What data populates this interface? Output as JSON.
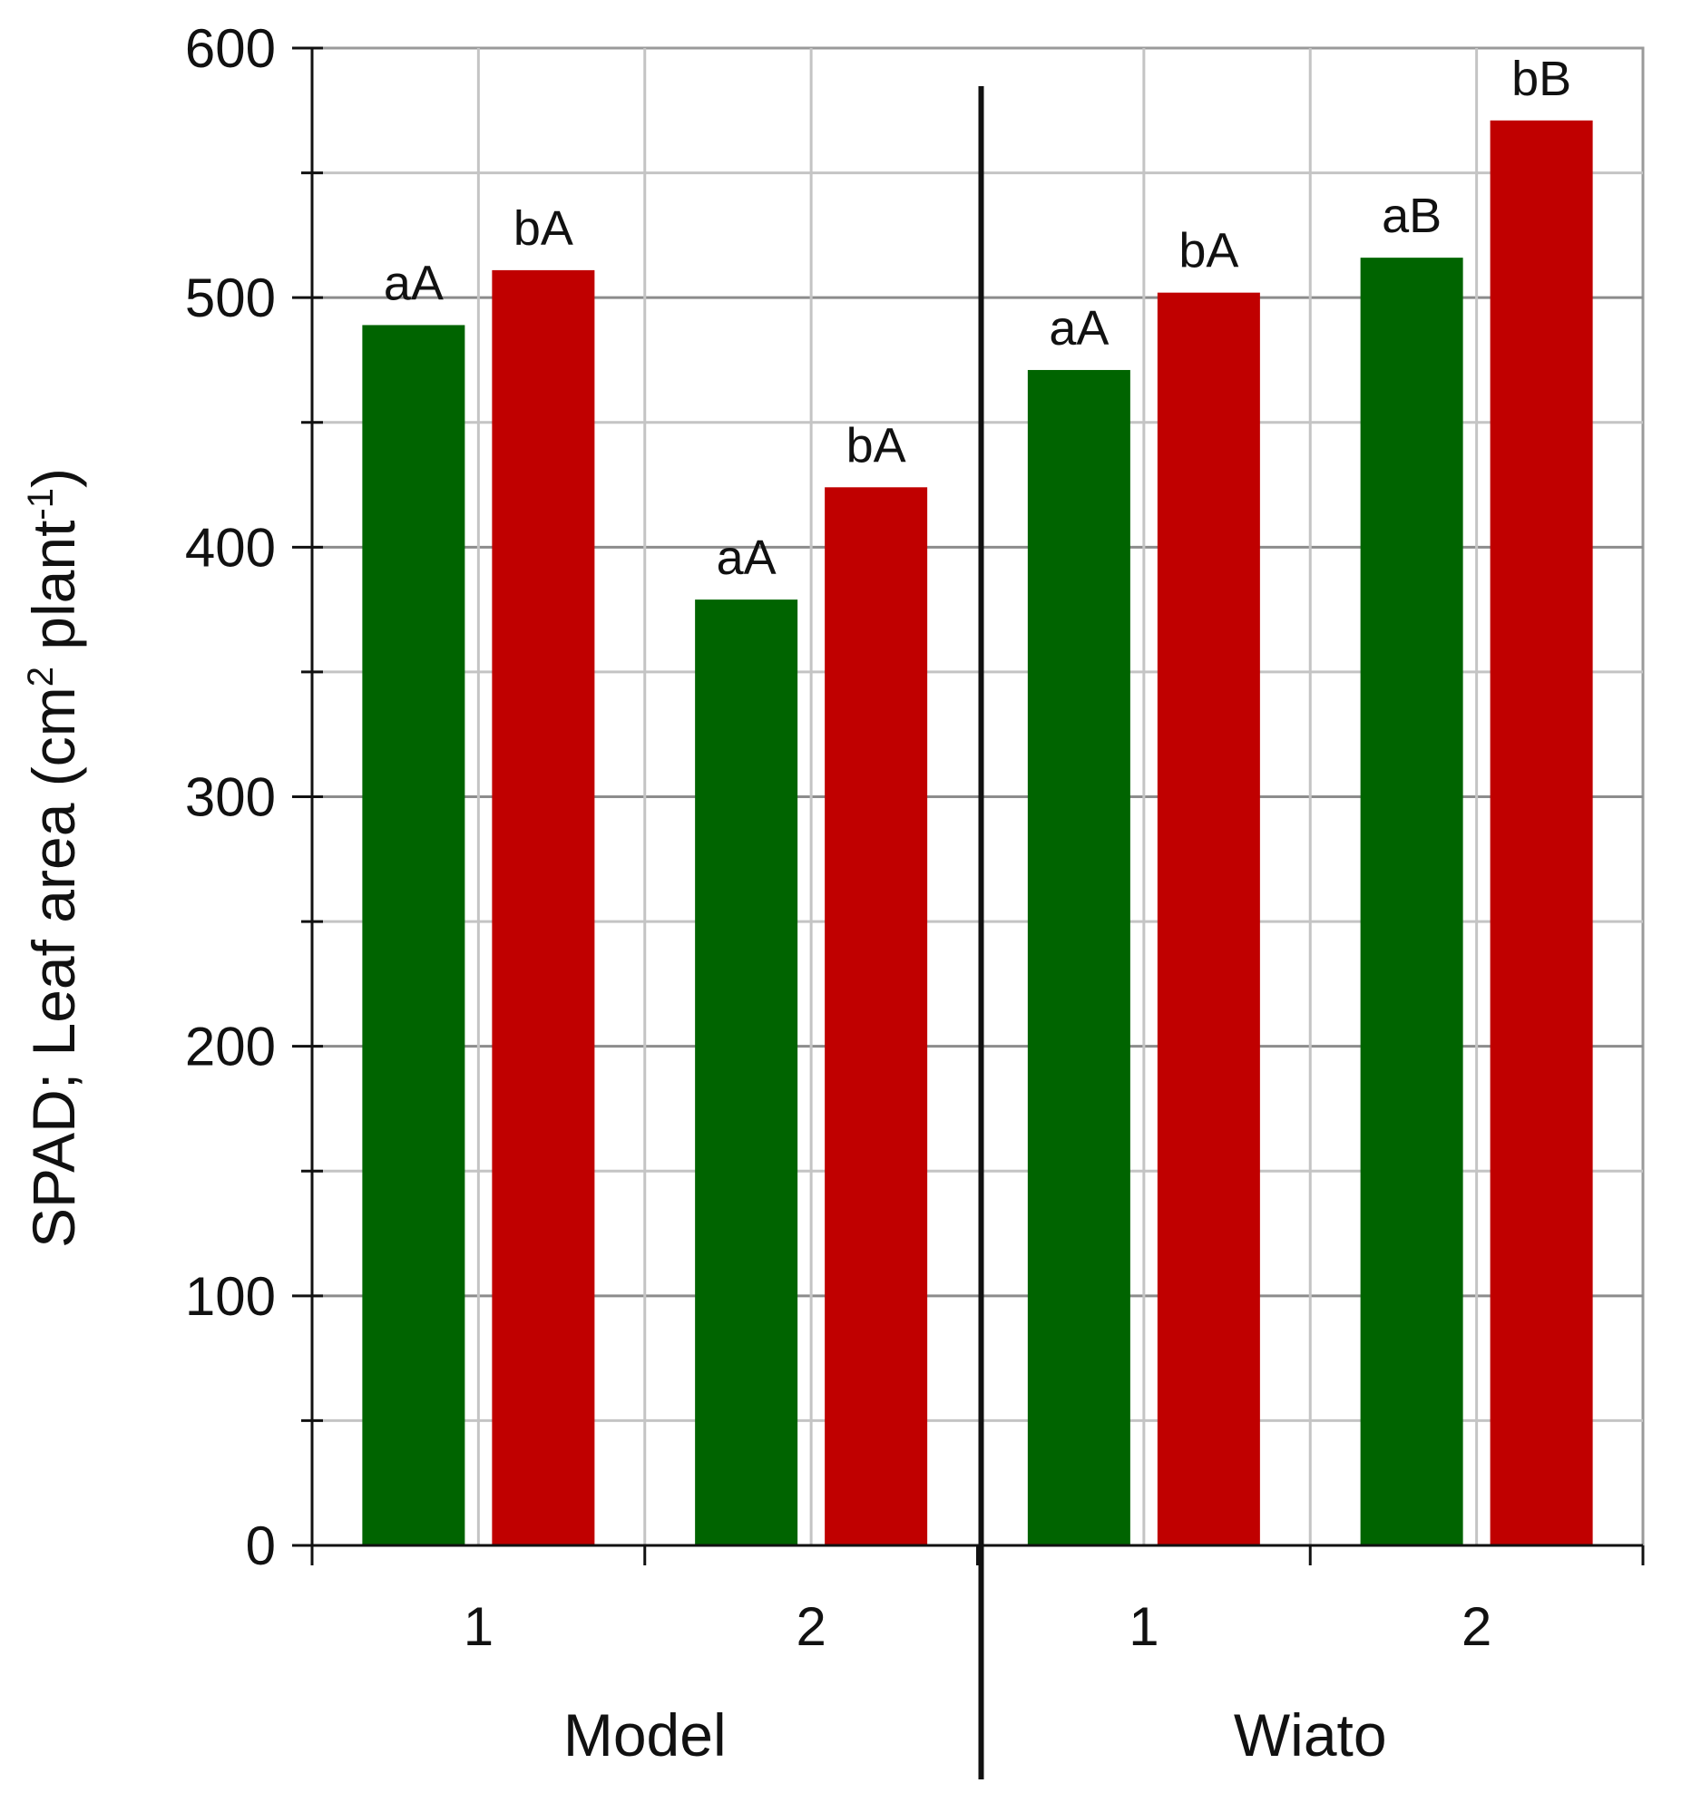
{
  "chart_data": {
    "type": "bar",
    "ylabel": "SPAD; Leaf area (cm",
    "ylabel_sup1": "2",
    "ylabel_mid": " plant",
    "ylabel_sup2": "-1",
    "ylabel_end": ")",
    "ylim": [
      0,
      600
    ],
    "yticks": [
      0,
      100,
      200,
      300,
      400,
      500,
      600
    ],
    "grid": true,
    "groups": [
      "Model",
      "Wiato"
    ],
    "categories": [
      "1",
      "2",
      "1",
      "2"
    ],
    "colors": {
      "green": "#006400",
      "red": "#c00000"
    },
    "series": [
      {
        "color": "green",
        "values": [
          489,
          379,
          471,
          516
        ],
        "labels": [
          "aA",
          "aA",
          "aA",
          "aB"
        ]
      },
      {
        "color": "red",
        "values": [
          511,
          424,
          502,
          571
        ],
        "labels": [
          "bA",
          "bA",
          "bA",
          "bB"
        ]
      }
    ]
  }
}
